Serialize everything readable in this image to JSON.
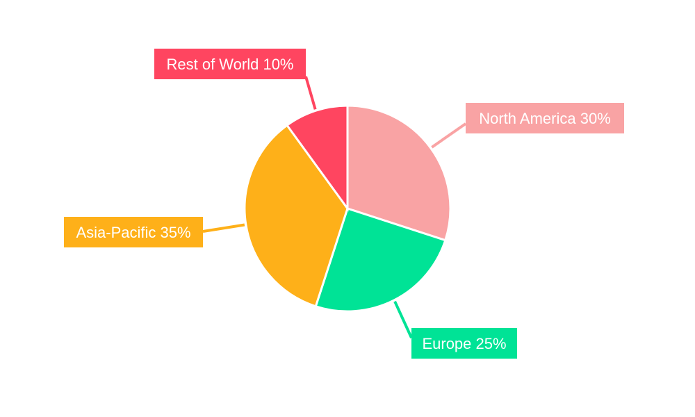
{
  "chart_data": {
    "type": "pie",
    "title": "",
    "start_angle": "top, clockwise",
    "slices": [
      {
        "label": "North America",
        "value": 30,
        "display": "North America 30%",
        "color": "#F9A3A4"
      },
      {
        "label": "Europe",
        "value": 25,
        "display": "Europe 25%",
        "color": "#00E396"
      },
      {
        "label": "Asia-Pacific",
        "value": 35,
        "display": "Asia-Pacific 35%",
        "color": "#FEB019"
      },
      {
        "label": "Rest of World",
        "value": 10,
        "display": "Rest of World 10%",
        "color": "#FF4560"
      }
    ]
  }
}
